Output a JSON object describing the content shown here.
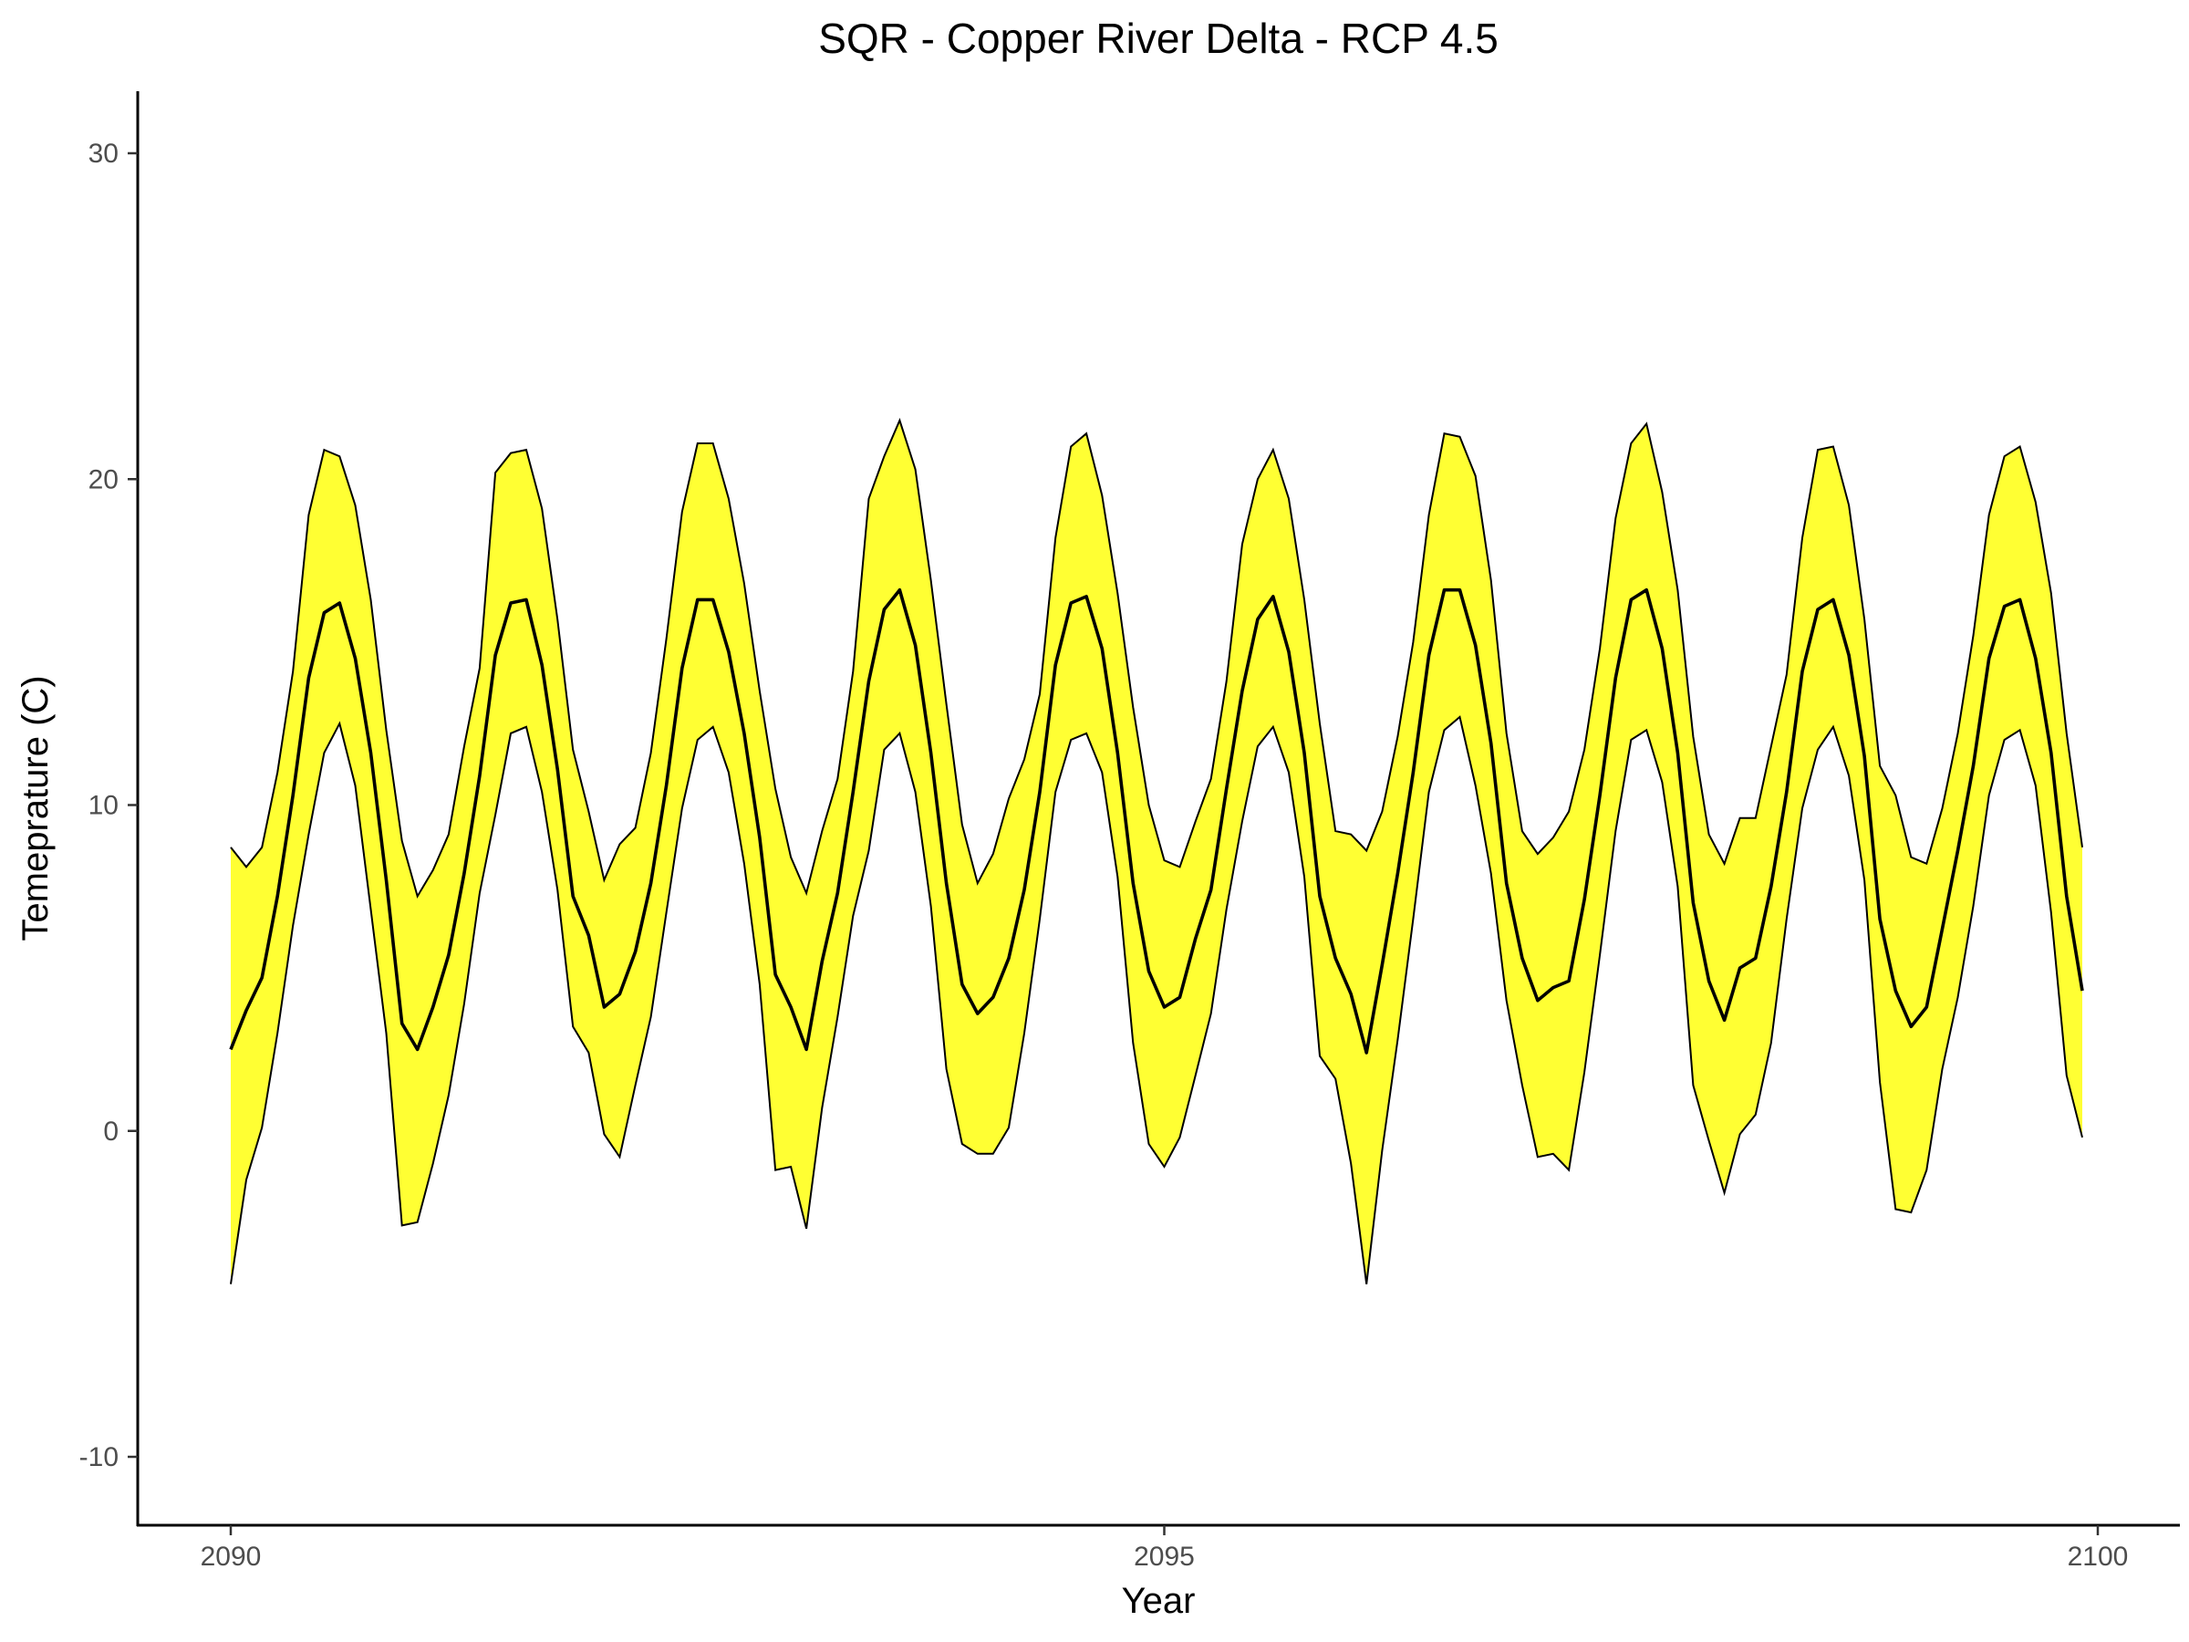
{
  "chart_data": {
    "type": "area",
    "title": "SQR - Copper River Delta - RCP 4.5",
    "xlabel": "Year",
    "ylabel": "Temeprature (C)",
    "xlim": [
      2089.5,
      2100.4
    ],
    "ylim": [
      -12,
      32
    ],
    "x_ticks": [
      2090,
      2095,
      2100
    ],
    "y_ticks": [
      -10,
      0,
      10,
      20,
      30
    ],
    "grid": false,
    "legend": "none",
    "band_color": "#ffff33",
    "line_color": "#000000",
    "x": [
      2090.0,
      2090.083,
      2090.167,
      2090.25,
      2090.333,
      2090.417,
      2090.5,
      2090.583,
      2090.667,
      2090.75,
      2090.833,
      2090.917,
      2091.0,
      2091.083,
      2091.167,
      2091.25,
      2091.333,
      2091.417,
      2091.5,
      2091.583,
      2091.667,
      2091.75,
      2091.833,
      2091.917,
      2092.0,
      2092.083,
      2092.167,
      2092.25,
      2092.333,
      2092.417,
      2092.5,
      2092.583,
      2092.667,
      2092.75,
      2092.833,
      2092.917,
      2093.0,
      2093.083,
      2093.167,
      2093.25,
      2093.333,
      2093.417,
      2093.5,
      2093.583,
      2093.667,
      2093.75,
      2093.833,
      2093.917,
      2094.0,
      2094.083,
      2094.167,
      2094.25,
      2094.333,
      2094.417,
      2094.5,
      2094.583,
      2094.667,
      2094.75,
      2094.833,
      2094.917,
      2095.0,
      2095.083,
      2095.167,
      2095.25,
      2095.333,
      2095.417,
      2095.5,
      2095.583,
      2095.667,
      2095.75,
      2095.833,
      2095.917,
      2096.0,
      2096.083,
      2096.167,
      2096.25,
      2096.333,
      2096.417,
      2096.5,
      2096.583,
      2096.667,
      2096.75,
      2096.833,
      2096.917,
      2097.0,
      2097.083,
      2097.167,
      2097.25,
      2097.333,
      2097.417,
      2097.5,
      2097.583,
      2097.667,
      2097.75,
      2097.833,
      2097.917,
      2098.0,
      2098.083,
      2098.167,
      2098.25,
      2098.333,
      2098.417,
      2098.5,
      2098.583,
      2098.667,
      2098.75,
      2098.833,
      2098.917,
      2099.0,
      2099.083,
      2099.167,
      2099.25,
      2099.333,
      2099.417,
      2099.5,
      2099.583,
      2099.667,
      2099.75,
      2099.833,
      2099.917
    ],
    "series": [
      {
        "values": [
          2.5,
          3.7,
          4.7,
          7.2,
          10.3,
          13.9,
          15.9,
          16.2,
          14.5,
          11.6,
          7.7,
          3.3,
          2.5,
          3.8,
          5.4,
          7.9,
          10.9,
          14.6,
          16.2,
          16.3,
          14.3,
          11.1,
          7.2,
          6.0,
          3.8,
          4.2,
          5.5,
          7.6,
          10.6,
          14.2,
          16.3,
          16.3,
          14.7,
          12.2,
          9.0,
          4.8,
          3.8,
          2.5,
          5.2,
          7.3,
          10.4,
          13.8,
          16.0,
          16.6,
          14.9,
          11.6,
          7.6,
          4.5,
          3.6,
          4.1,
          5.3,
          7.4,
          10.4,
          14.3,
          16.2,
          16.4,
          14.8,
          11.6,
          7.6,
          4.9,
          3.8,
          4.1,
          5.9,
          7.4,
          10.5,
          13.5,
          15.7,
          16.4,
          14.7,
          11.6,
          7.2,
          5.3,
          4.2,
          2.4,
          5.1,
          7.9,
          11.0,
          14.6,
          16.6,
          16.6,
          14.9,
          11.9,
          7.6,
          5.3,
          4.0,
          4.4,
          4.6,
          7.1,
          10.3,
          13.9,
          16.3,
          16.6,
          14.8,
          11.6,
          7.0,
          4.6,
          3.4,
          5.0,
          5.3,
          7.5,
          10.4,
          14.1,
          16.0,
          16.3,
          14.6,
          11.5,
          6.5,
          4.3,
          3.2,
          3.8,
          6.2,
          8.6,
          11.2,
          14.5,
          16.1,
          16.3,
          14.5,
          11.6,
          7.2,
          4.3
        ]
      },
      {
        "values": [
          8.7,
          8.1,
          8.7,
          11.0,
          14.1,
          18.9,
          20.9,
          20.7,
          19.2,
          16.3,
          12.3,
          8.9,
          7.2,
          8.0,
          9.1,
          11.8,
          14.2,
          20.2,
          20.8,
          20.9,
          19.1,
          15.7,
          11.7,
          9.8,
          7.7,
          8.8,
          9.3,
          11.6,
          15.1,
          19.0,
          21.1,
          21.1,
          19.4,
          16.8,
          13.5,
          10.5,
          8.4,
          7.3,
          9.2,
          10.8,
          14.1,
          19.4,
          20.7,
          21.8,
          20.3,
          16.9,
          13.1,
          9.4,
          7.6,
          8.5,
          10.2,
          11.4,
          13.4,
          18.2,
          21.0,
          21.4,
          19.5,
          16.5,
          13.0,
          10.0,
          8.3,
          8.1,
          9.5,
          10.8,
          13.8,
          18.0,
          20.0,
          20.9,
          19.4,
          16.3,
          12.5,
          9.2,
          9.1,
          8.6,
          9.8,
          12.1,
          15.0,
          18.9,
          21.4,
          21.3,
          20.1,
          16.9,
          12.2,
          9.2,
          8.5,
          9.0,
          9.8,
          11.7,
          14.8,
          18.8,
          21.1,
          21.7,
          19.6,
          16.6,
          12.1,
          9.1,
          8.2,
          9.6,
          9.6,
          11.8,
          14.0,
          18.2,
          20.9,
          21.0,
          19.2,
          15.7,
          11.2,
          10.3,
          8.4,
          8.2,
          9.9,
          12.2,
          15.2,
          18.9,
          20.7,
          21.0,
          19.3,
          16.5,
          12.2,
          8.7
        ]
      },
      {
        "values": [
          -4.7,
          -1.5,
          0.1,
          3.0,
          6.3,
          9.1,
          11.6,
          12.5,
          10.6,
          6.8,
          3.0,
          -2.9,
          -2.8,
          -1.0,
          1.1,
          3.9,
          7.3,
          9.7,
          12.2,
          12.4,
          10.4,
          7.4,
          3.2,
          2.4,
          -0.1,
          -0.8,
          1.4,
          3.5,
          6.7,
          9.9,
          12.0,
          12.4,
          11.0,
          8.2,
          4.5,
          -1.2,
          -1.1,
          -3.0,
          0.7,
          3.5,
          6.6,
          8.6,
          11.7,
          12.2,
          10.4,
          6.9,
          1.9,
          -0.4,
          -0.7,
          -0.7,
          0.1,
          3.0,
          6.5,
          10.4,
          12.0,
          12.2,
          11.0,
          7.8,
          2.7,
          -0.4,
          -1.1,
          -0.2,
          1.7,
          3.6,
          6.8,
          9.5,
          11.8,
          12.4,
          11.0,
          7.8,
          2.3,
          1.6,
          -1.0,
          -4.7,
          -0.6,
          2.8,
          6.5,
          10.4,
          12.3,
          12.7,
          10.6,
          7.9,
          4.0,
          1.4,
          -0.8,
          -0.7,
          -1.2,
          1.8,
          5.4,
          9.2,
          12.0,
          12.3,
          10.7,
          7.5,
          1.4,
          -0.3,
          -1.9,
          -0.1,
          0.5,
          2.7,
          6.5,
          9.9,
          11.7,
          12.4,
          10.9,
          7.7,
          1.5,
          -2.4,
          -2.5,
          -1.2,
          1.9,
          4.1,
          6.9,
          10.3,
          12.0,
          12.3,
          10.6,
          6.7,
          1.7,
          -0.2
        ]
      }
    ]
  }
}
